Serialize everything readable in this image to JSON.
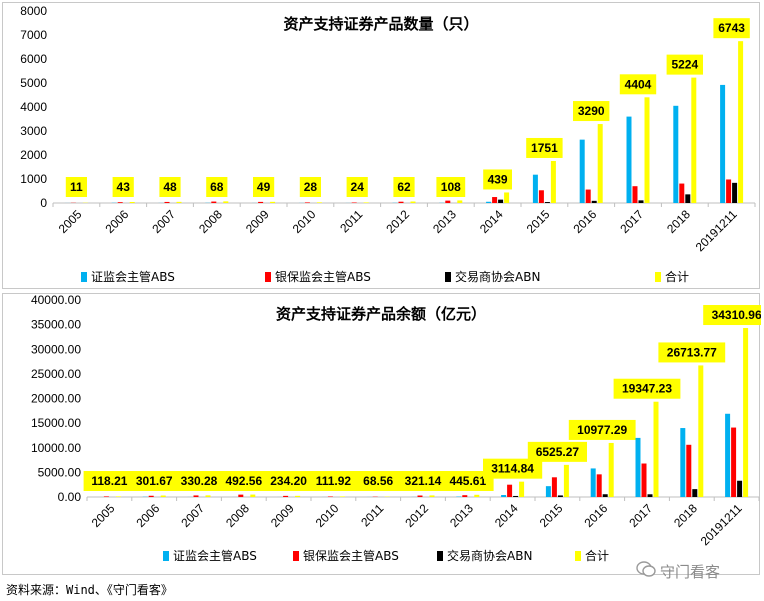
{
  "chart_data": [
    {
      "type": "bar",
      "title": "资产支持证券产品数量（只）",
      "categories": [
        "2005",
        "2006",
        "2007",
        "2008",
        "2009",
        "2010",
        "2011",
        "2012",
        "2013",
        "2014",
        "2015",
        "2016",
        "2017",
        "2018",
        "20191211"
      ],
      "ylim": [
        0,
        8000
      ],
      "yticks": [
        "0",
        "1000",
        "2000",
        "3000",
        "4000",
        "5000",
        "6000",
        "7000",
        "8000"
      ],
      "yticks_values": [
        0,
        1000,
        2000,
        3000,
        4000,
        5000,
        6000,
        7000,
        8000
      ],
      "legend_position": "bottom",
      "grid": false,
      "series": [
        {
          "name": "证监会主管ABS",
          "color": "#00B0F0",
          "values": [
            2,
            9,
            4,
            8,
            3,
            4,
            3,
            8,
            9,
            51,
            1180,
            2640,
            3600,
            4050,
            4920
          ]
        },
        {
          "name": "银保监会主管ABS",
          "color": "#FF0000",
          "values": [
            9,
            34,
            44,
            60,
            46,
            24,
            21,
            54,
            99,
            248,
            530,
            560,
            700,
            810,
            980
          ]
        },
        {
          "name": "交易商协会ABN",
          "color": "#000000",
          "values": [
            0,
            0,
            0,
            0,
            0,
            0,
            0,
            0,
            0,
            140,
            40,
            90,
            110,
            360,
            840
          ]
        },
        {
          "name": "合计",
          "color": "#FFFF00",
          "values": [
            11,
            43,
            48,
            68,
            49,
            28,
            24,
            62,
            108,
            439,
            1751,
            3290,
            4404,
            5224,
            6743
          ]
        }
      ],
      "total_labels": [
        "11",
        "43",
        "48",
        "68",
        "49",
        "28",
        "24",
        "62",
        "108",
        "439",
        "1751",
        "3290",
        "4404",
        "5224",
        "6743"
      ]
    },
    {
      "type": "bar",
      "title": "资产支持证券产品余额（亿元）",
      "categories": [
        "2005",
        "2006",
        "2007",
        "2008",
        "2009",
        "2010",
        "2011",
        "2012",
        "2013",
        "2014",
        "2015",
        "2016",
        "2017",
        "2018",
        "20191211"
      ],
      "ylim": [
        0,
        40000
      ],
      "yticks": [
        "0.00",
        "5000.00",
        "10000.00",
        "15000.00",
        "20000.00",
        "25000.00",
        "30000.00",
        "35000.00",
        "40000.00"
      ],
      "yticks_values": [
        0,
        5000,
        10000,
        15000,
        20000,
        25000,
        30000,
        35000,
        40000
      ],
      "legend_position": "bottom",
      "grid": false,
      "series": [
        {
          "name": "证监会主管ABS",
          "color": "#00B0F0",
          "values": [
            0,
            50,
            10,
            10,
            5,
            10,
            10,
            20,
            80,
            400,
            2200,
            5800,
            12000,
            14000,
            16900
          ]
        },
        {
          "name": "银保监会主管ABS",
          "color": "#FF0000",
          "values": [
            118.21,
            251.67,
            320.28,
            482.56,
            229.2,
            101.92,
            58.56,
            301.14,
            365.61,
            2500,
            4000,
            4600,
            6800,
            10600,
            14100
          ]
        },
        {
          "name": "交易商协会ABN",
          "color": "#000000",
          "values": [
            0,
            0,
            0,
            0,
            0,
            0,
            0,
            0,
            0,
            210,
            320,
            560,
            550,
            1600,
            3300
          ]
        },
        {
          "name": "合计",
          "color": "#FFFF00",
          "values": [
            118.21,
            301.67,
            330.28,
            492.56,
            234.2,
            111.92,
            68.56,
            321.14,
            445.61,
            3114.84,
            6525.27,
            10977.29,
            19347.23,
            26713.77,
            34310.96
          ]
        }
      ],
      "total_labels": [
        "118.21",
        "301.67",
        "330.28",
        "492.56",
        "234.20",
        "111.92",
        "68.56",
        "321.14",
        "445.61",
        "3114.84",
        "6525.27",
        "10977.29",
        "19347.23",
        "26713.77",
        "34310.96"
      ]
    }
  ],
  "source_text": "资料来源：Wind、《守门看客》",
  "watermark_text": "守门看客"
}
